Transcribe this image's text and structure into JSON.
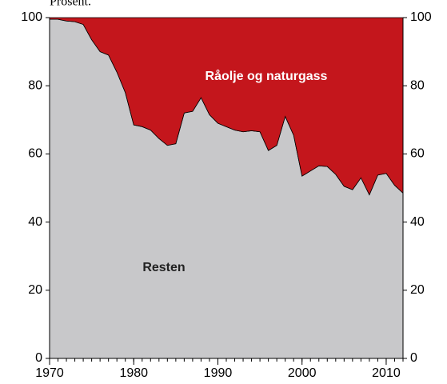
{
  "chart_data": {
    "type": "stacked_area",
    "y_label": "Prosent.",
    "x": [
      1970,
      1971,
      1972,
      1973,
      1974,
      1975,
      1976,
      1977,
      1978,
      1979,
      1980,
      1981,
      1982,
      1983,
      1984,
      1985,
      1986,
      1987,
      1988,
      1989,
      1990,
      1991,
      1992,
      1993,
      1994,
      1995,
      1996,
      1997,
      1998,
      1999,
      2000,
      2001,
      2002,
      2003,
      2004,
      2005,
      2006,
      2007,
      2008,
      2009,
      2010,
      2011,
      2012
    ],
    "series": [
      {
        "name": "Resten",
        "color": "#c8c8ca",
        "values": [
          99.5,
          99.5,
          99,
          98.8,
          98,
          93.5,
          90,
          89,
          84,
          78,
          68.5,
          68,
          67,
          64.5,
          62.5,
          63,
          72,
          72.5,
          76.5,
          71.5,
          69,
          68,
          67,
          66.5,
          66.8,
          66.5,
          61,
          62.5,
          71,
          65.5,
          53.5,
          55,
          56.5,
          56.3,
          54,
          50.5,
          49.5,
          53,
          48,
          53.8,
          54.3,
          50.8,
          48.5
        ]
      },
      {
        "name": "Råolje og naturgass",
        "color": "#c4161c",
        "values": [
          0.5,
          0.5,
          1,
          1.2,
          2,
          6.5,
          10,
          11,
          16,
          22,
          31.5,
          32,
          33,
          35.5,
          37.5,
          37,
          28,
          27.5,
          23.5,
          28.5,
          31,
          32,
          33,
          33.5,
          33.2,
          33.5,
          39,
          37.5,
          29,
          34.5,
          46.5,
          45,
          43.5,
          43.7,
          46,
          49.5,
          50.5,
          47,
          52,
          46.2,
          45.7,
          49.2,
          51.5
        ]
      }
    ],
    "xlim": [
      1970,
      2012
    ],
    "xticks": [
      1970,
      1980,
      1990,
      2000,
      2010
    ],
    "ylim": [
      0,
      100
    ],
    "yticks": [
      0,
      20,
      40,
      60,
      80,
      100
    ]
  }
}
